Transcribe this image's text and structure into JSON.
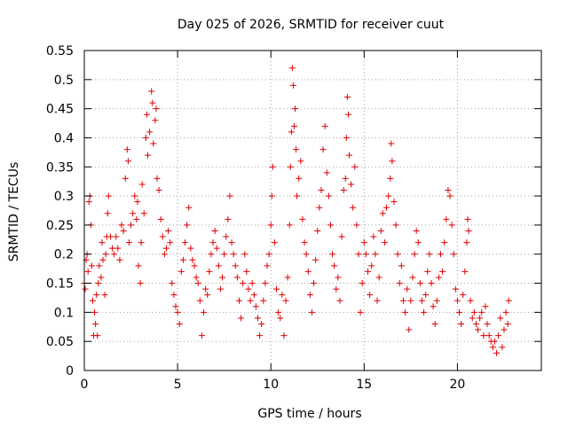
{
  "chart_data": {
    "type": "scatter",
    "title": "Day 025 of 2026, SRMTID for receiver cuut",
    "xlabel": "GPS time / hours",
    "ylabel": "SRMTID / TECUs",
    "xlim": [
      0,
      24.5
    ],
    "ylim": [
      0,
      0.55
    ],
    "x_ticks": [
      0,
      5,
      10,
      15,
      20
    ],
    "y_ticks": [
      0,
      0.05,
      0.1,
      0.15,
      0.2,
      0.25,
      0.3,
      0.35,
      0.4,
      0.45,
      0.5,
      0.55
    ],
    "x_tick_labels": [
      "0",
      "5",
      "10",
      "15",
      "20"
    ],
    "y_tick_labels": [
      "0",
      "0.05",
      "0.1",
      "0.15",
      "0.2",
      "0.25",
      "0.3",
      "0.35",
      "0.4",
      "0.45",
      "0.5",
      "0.55"
    ],
    "grid": true,
    "marker": "+",
    "color": "#e00000",
    "series": [
      {
        "points": [
          [
            0.0,
            0.15
          ],
          [
            0.05,
            0.14
          ],
          [
            0.1,
            0.19
          ],
          [
            0.15,
            0.2
          ],
          [
            0.2,
            0.17
          ],
          [
            0.25,
            0.29
          ],
          [
            0.3,
            0.3
          ],
          [
            0.35,
            0.25
          ],
          [
            0.4,
            0.18
          ],
          [
            0.45,
            0.12
          ],
          [
            0.5,
            0.06
          ],
          [
            0.55,
            0.1
          ],
          [
            0.6,
            0.08
          ],
          [
            0.65,
            0.13
          ],
          [
            0.7,
            0.06
          ],
          [
            0.75,
            0.15
          ],
          [
            0.8,
            0.18
          ],
          [
            0.9,
            0.16
          ],
          [
            0.95,
            0.22
          ],
          [
            1.0,
            0.19
          ],
          [
            1.1,
            0.13
          ],
          [
            1.15,
            0.2
          ],
          [
            1.2,
            0.23
          ],
          [
            1.25,
            0.27
          ],
          [
            1.3,
            0.3
          ],
          [
            1.4,
            0.23
          ],
          [
            1.5,
            0.21
          ],
          [
            1.6,
            0.2
          ],
          [
            1.7,
            0.23
          ],
          [
            1.8,
            0.21
          ],
          [
            1.9,
            0.19
          ],
          [
            2.0,
            0.25
          ],
          [
            2.1,
            0.24
          ],
          [
            2.2,
            0.33
          ],
          [
            2.3,
            0.38
          ],
          [
            2.35,
            0.36
          ],
          [
            2.4,
            0.22
          ],
          [
            2.5,
            0.25
          ],
          [
            2.6,
            0.27
          ],
          [
            2.7,
            0.3
          ],
          [
            2.8,
            0.26
          ],
          [
            2.85,
            0.29
          ],
          [
            2.9,
            0.18
          ],
          [
            3.0,
            0.15
          ],
          [
            3.05,
            0.22
          ],
          [
            3.1,
            0.32
          ],
          [
            3.2,
            0.27
          ],
          [
            3.3,
            0.4
          ],
          [
            3.35,
            0.44
          ],
          [
            3.4,
            0.37
          ],
          [
            3.5,
            0.41
          ],
          [
            3.6,
            0.48
          ],
          [
            3.65,
            0.46
          ],
          [
            3.7,
            0.39
          ],
          [
            3.8,
            0.43
          ],
          [
            3.85,
            0.45
          ],
          [
            3.9,
            0.33
          ],
          [
            4.0,
            0.31
          ],
          [
            4.1,
            0.26
          ],
          [
            4.2,
            0.23
          ],
          [
            4.3,
            0.2
          ],
          [
            4.4,
            0.21
          ],
          [
            4.5,
            0.24
          ],
          [
            4.6,
            0.22
          ],
          [
            4.7,
            0.15
          ],
          [
            4.8,
            0.13
          ],
          [
            4.9,
            0.11
          ],
          [
            5.0,
            0.1
          ],
          [
            5.1,
            0.08
          ],
          [
            5.2,
            0.17
          ],
          [
            5.3,
            0.19
          ],
          [
            5.4,
            0.22
          ],
          [
            5.5,
            0.25
          ],
          [
            5.6,
            0.28
          ],
          [
            5.7,
            0.21
          ],
          [
            5.8,
            0.19
          ],
          [
            5.9,
            0.18
          ],
          [
            6.0,
            0.16
          ],
          [
            6.1,
            0.15
          ],
          [
            6.2,
            0.12
          ],
          [
            6.3,
            0.06
          ],
          [
            6.4,
            0.1
          ],
          [
            6.5,
            0.14
          ],
          [
            6.6,
            0.13
          ],
          [
            6.7,
            0.17
          ],
          [
            6.8,
            0.2
          ],
          [
            6.9,
            0.22
          ],
          [
            7.0,
            0.24
          ],
          [
            7.1,
            0.21
          ],
          [
            7.2,
            0.18
          ],
          [
            7.3,
            0.14
          ],
          [
            7.4,
            0.16
          ],
          [
            7.5,
            0.2
          ],
          [
            7.6,
            0.23
          ],
          [
            7.7,
            0.26
          ],
          [
            7.8,
            0.3
          ],
          [
            7.9,
            0.22
          ],
          [
            8.0,
            0.2
          ],
          [
            8.1,
            0.18
          ],
          [
            8.2,
            0.16
          ],
          [
            8.3,
            0.12
          ],
          [
            8.4,
            0.09
          ],
          [
            8.5,
            0.15
          ],
          [
            8.6,
            0.2
          ],
          [
            8.7,
            0.17
          ],
          [
            8.8,
            0.14
          ],
          [
            8.9,
            0.12
          ],
          [
            9.0,
            0.15
          ],
          [
            9.1,
            0.13
          ],
          [
            9.2,
            0.11
          ],
          [
            9.3,
            0.09
          ],
          [
            9.4,
            0.06
          ],
          [
            9.5,
            0.08
          ],
          [
            9.6,
            0.12
          ],
          [
            9.7,
            0.15
          ],
          [
            9.8,
            0.18
          ],
          [
            9.9,
            0.2
          ],
          [
            10.0,
            0.25
          ],
          [
            10.05,
            0.3
          ],
          [
            10.1,
            0.35
          ],
          [
            10.2,
            0.22
          ],
          [
            10.3,
            0.14
          ],
          [
            10.4,
            0.1
          ],
          [
            10.5,
            0.09
          ],
          [
            10.6,
            0.13
          ],
          [
            10.7,
            0.06
          ],
          [
            10.8,
            0.12
          ],
          [
            10.9,
            0.16
          ],
          [
            11.0,
            0.25
          ],
          [
            11.05,
            0.35
          ],
          [
            11.1,
            0.41
          ],
          [
            11.15,
            0.52
          ],
          [
            11.2,
            0.49
          ],
          [
            11.25,
            0.42
          ],
          [
            11.3,
            0.45
          ],
          [
            11.35,
            0.38
          ],
          [
            11.4,
            0.3
          ],
          [
            11.5,
            0.33
          ],
          [
            11.6,
            0.36
          ],
          [
            11.7,
            0.26
          ],
          [
            11.8,
            0.22
          ],
          [
            11.9,
            0.2
          ],
          [
            12.0,
            0.17
          ],
          [
            12.1,
            0.13
          ],
          [
            12.2,
            0.1
          ],
          [
            12.3,
            0.15
          ],
          [
            12.4,
            0.19
          ],
          [
            12.5,
            0.24
          ],
          [
            12.6,
            0.28
          ],
          [
            12.7,
            0.31
          ],
          [
            12.8,
            0.38
          ],
          [
            12.9,
            0.42
          ],
          [
            13.0,
            0.34
          ],
          [
            13.1,
            0.3
          ],
          [
            13.2,
            0.25
          ],
          [
            13.3,
            0.2
          ],
          [
            13.4,
            0.18
          ],
          [
            13.5,
            0.14
          ],
          [
            13.6,
            0.16
          ],
          [
            13.7,
            0.12
          ],
          [
            13.8,
            0.23
          ],
          [
            13.9,
            0.31
          ],
          [
            14.0,
            0.33
          ],
          [
            14.05,
            0.4
          ],
          [
            14.1,
            0.47
          ],
          [
            14.15,
            0.44
          ],
          [
            14.2,
            0.37
          ],
          [
            14.3,
            0.32
          ],
          [
            14.4,
            0.28
          ],
          [
            14.5,
            0.35
          ],
          [
            14.6,
            0.25
          ],
          [
            14.7,
            0.2
          ],
          [
            14.8,
            0.1
          ],
          [
            14.9,
            0.15
          ],
          [
            15.0,
            0.22
          ],
          [
            15.1,
            0.2
          ],
          [
            15.2,
            0.17
          ],
          [
            15.3,
            0.13
          ],
          [
            15.4,
            0.18
          ],
          [
            15.5,
            0.23
          ],
          [
            15.6,
            0.2
          ],
          [
            15.7,
            0.12
          ],
          [
            15.8,
            0.16
          ],
          [
            15.9,
            0.24
          ],
          [
            16.0,
            0.27
          ],
          [
            16.1,
            0.22
          ],
          [
            16.2,
            0.28
          ],
          [
            16.3,
            0.3
          ],
          [
            16.4,
            0.33
          ],
          [
            16.45,
            0.39
          ],
          [
            16.5,
            0.36
          ],
          [
            16.6,
            0.29
          ],
          [
            16.7,
            0.25
          ],
          [
            16.8,
            0.2
          ],
          [
            16.9,
            0.15
          ],
          [
            17.0,
            0.18
          ],
          [
            17.1,
            0.12
          ],
          [
            17.2,
            0.1
          ],
          [
            17.3,
            0.14
          ],
          [
            17.4,
            0.07
          ],
          [
            17.5,
            0.12
          ],
          [
            17.6,
            0.16
          ],
          [
            17.7,
            0.2
          ],
          [
            17.8,
            0.24
          ],
          [
            17.9,
            0.22
          ],
          [
            18.0,
            0.15
          ],
          [
            18.1,
            0.12
          ],
          [
            18.2,
            0.1
          ],
          [
            18.3,
            0.13
          ],
          [
            18.4,
            0.17
          ],
          [
            18.5,
            0.2
          ],
          [
            18.6,
            0.15
          ],
          [
            18.7,
            0.11
          ],
          [
            18.8,
            0.08
          ],
          [
            18.9,
            0.12
          ],
          [
            19.0,
            0.16
          ],
          [
            19.1,
            0.2
          ],
          [
            19.2,
            0.17
          ],
          [
            19.3,
            0.22
          ],
          [
            19.4,
            0.26
          ],
          [
            19.5,
            0.31
          ],
          [
            19.6,
            0.3
          ],
          [
            19.7,
            0.25
          ],
          [
            19.8,
            0.2
          ],
          [
            19.9,
            0.14
          ],
          [
            20.0,
            0.12
          ],
          [
            20.1,
            0.1
          ],
          [
            20.2,
            0.08
          ],
          [
            20.3,
            0.13
          ],
          [
            20.4,
            0.17
          ],
          [
            20.5,
            0.22
          ],
          [
            20.55,
            0.26
          ],
          [
            20.6,
            0.24
          ],
          [
            20.7,
            0.12
          ],
          [
            20.8,
            0.09
          ],
          [
            20.9,
            0.1
          ],
          [
            21.0,
            0.08
          ],
          [
            21.1,
            0.07
          ],
          [
            21.2,
            0.09
          ],
          [
            21.3,
            0.1
          ],
          [
            21.4,
            0.06
          ],
          [
            21.5,
            0.11
          ],
          [
            21.6,
            0.08
          ],
          [
            21.7,
            0.06
          ],
          [
            21.8,
            0.05
          ],
          [
            21.9,
            0.04
          ],
          [
            22.0,
            0.05
          ],
          [
            22.1,
            0.03
          ],
          [
            22.2,
            0.06
          ],
          [
            22.3,
            0.09
          ],
          [
            22.4,
            0.04
          ],
          [
            22.5,
            0.07
          ],
          [
            22.6,
            0.1
          ],
          [
            22.7,
            0.08
          ],
          [
            22.75,
            0.12
          ]
        ]
      }
    ]
  }
}
